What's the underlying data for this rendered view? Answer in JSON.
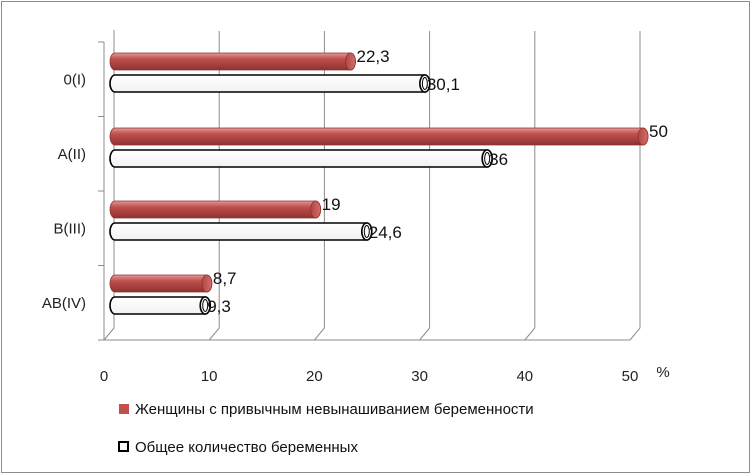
{
  "chart_data": {
    "type": "bar",
    "orientation": "horizontal",
    "style": "3d-cylinder",
    "categories": [
      "0(I)",
      "A(II)",
      "B(III)",
      "AB(IV)"
    ],
    "series": [
      {
        "name": "Женщины с привычным невынашиванием беременности",
        "values": [
          22.3,
          50,
          19,
          8.7
        ],
        "labels": [
          "22,3",
          "50",
          "19",
          "8,7"
        ],
        "color": "#c0504d"
      },
      {
        "name": "Общее количество беременных",
        "values": [
          30.1,
          36,
          24.6,
          9.3
        ],
        "labels": [
          "30,1",
          "36",
          "24,6",
          "9,3"
        ],
        "color": "#ffffff"
      }
    ],
    "x_ticks": [
      "0",
      "10",
      "20",
      "30",
      "40",
      "50"
    ],
    "xlim": [
      0,
      50
    ],
    "x_unit": "%",
    "grid": true,
    "legend_position": "bottom"
  }
}
